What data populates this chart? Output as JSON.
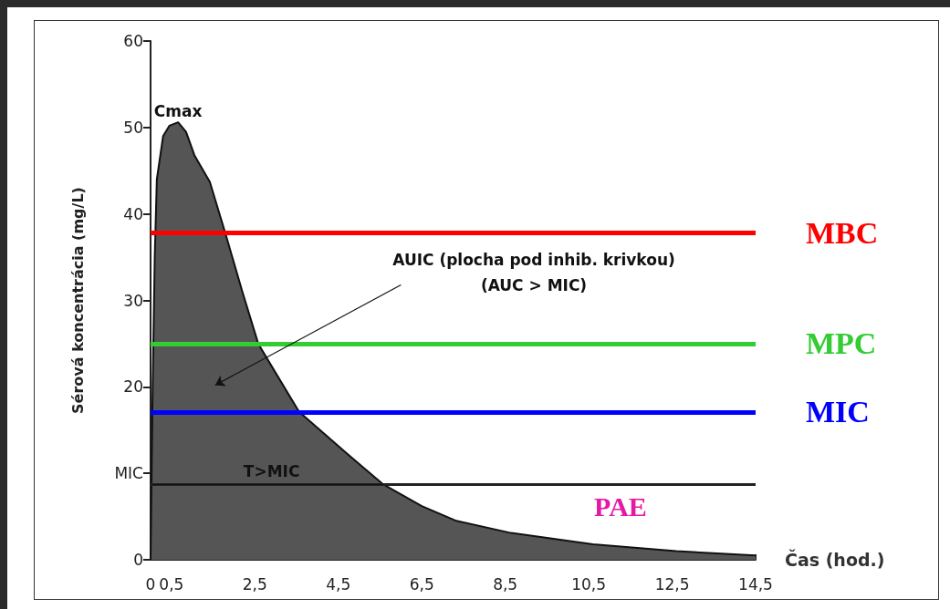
{
  "chart_data": {
    "type": "area",
    "xlabel": "Čas (hod.)",
    "ylabel": "Sérová koncentrácia (mg/L)",
    "x": [
      0,
      0.05,
      0.1,
      0.15,
      0.3,
      0.45,
      0.66,
      0.85,
      1.05,
      1.42,
      1.79,
      2.2,
      2.58,
      2.95,
      3.56,
      4.7,
      5.58,
      6.5,
      7.33,
      8.64,
      10.6,
      12.6,
      14.5
    ],
    "series": [
      {
        "color": "#555555",
        "values": [
          0,
          20,
          35,
          44,
          49,
          50.2,
          50.6,
          49.5,
          46.8,
          43.7,
          37.8,
          31,
          25,
          22,
          17.1,
          12.3,
          8.7,
          6.2,
          4.5,
          3.1,
          1.8,
          1,
          0.5
        ]
      }
    ],
    "xlim": [
      0,
      14.5
    ],
    "ylim": [
      0,
      60
    ],
    "xticks": [
      0,
      {
        "value": 0.5,
        "label": "0,5"
      },
      {
        "value": 2.5,
        "label": "2,5"
      },
      {
        "value": 4.5,
        "label": "4,5"
      },
      {
        "value": 6.5,
        "label": "6,5"
      },
      {
        "value": 8.5,
        "label": "8,5"
      },
      {
        "value": 10.5,
        "label": "10,5"
      },
      {
        "value": 12.5,
        "label": "12,5"
      },
      {
        "value": 14.5,
        "label": "14,5"
      }
    ],
    "yticks": [
      0,
      {
        "value": 10,
        "label": "MIC"
      },
      20,
      30,
      40,
      50,
      60
    ],
    "ref_lines": [
      {
        "axis": "y",
        "value": 37.8,
        "label": "MBC",
        "color": "#ff0000"
      },
      {
        "axis": "y",
        "value": 25,
        "label": "MPC",
        "color": "#33cc33"
      },
      {
        "axis": "y",
        "value": 17.1,
        "label": "MIC",
        "color": "#0000ff"
      },
      {
        "axis": "y",
        "value": 8.7,
        "color": "#222222"
      }
    ],
    "annotations": [
      {
        "text": "Cmax",
        "x": 0.66,
        "y": 50.6
      },
      "AUIC (plocha pod inhib. krivkou)",
      "(AUC > MIC)",
      {
        "text": "T>MIC",
        "x": 2.9,
        "y": 8.7
      },
      "PAE"
    ],
    "grid": false,
    "marker": "none"
  }
}
